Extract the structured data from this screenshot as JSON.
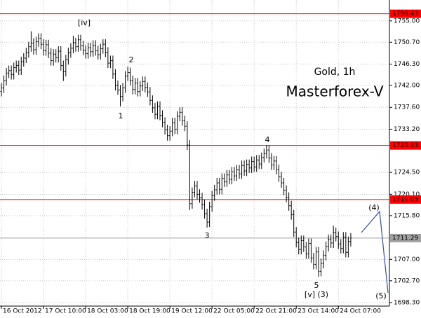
{
  "chart_data": {
    "type": "ohlc",
    "title": "Gold, 1h",
    "subtitle": "Masterforex-V",
    "subtitle_color": "#ff0000",
    "color": "#000000",
    "grid": true,
    "ylim": [
      1697.6,
      1759.2
    ],
    "yticks": [
      {
        "value": 1755.0,
        "label": "1755.00"
      },
      {
        "value": 1750.7,
        "label": "1750.70"
      },
      {
        "value": 1746.3,
        "label": "1746.30"
      },
      {
        "value": 1742.0,
        "label": "1742.00"
      },
      {
        "value": 1737.6,
        "label": "1737.60"
      },
      {
        "value": 1733.2,
        "label": "1733.20"
      },
      {
        "value": 1724.5,
        "label": "1724.50"
      },
      {
        "value": 1720.1,
        "label": "1720.10"
      },
      {
        "value": 1715.8,
        "label": "1715.80"
      },
      {
        "value": 1707.0,
        "label": "1707.00"
      },
      {
        "value": 1702.7,
        "label": "1702.70"
      },
      {
        "value": 1698.3,
        "label": "1698.30"
      }
    ],
    "xlim": [
      -0.57,
      156.6
    ],
    "xticks": [
      {
        "value": 0,
        "label": "16 Oct 2012"
      },
      {
        "value": 17,
        "label": "17 Oct 10:00"
      },
      {
        "value": 34,
        "label": "18 Oct 03:00"
      },
      {
        "value": 51,
        "label": "18 Oct 19:00"
      },
      {
        "value": 68,
        "label": "19 Oct 12:00"
      },
      {
        "value": 85,
        "label": "22 Oct 05:00"
      },
      {
        "value": 102,
        "label": "22 Oct 21:00"
      },
      {
        "value": 119,
        "label": "23 Oct 14:00"
      },
      {
        "value": 136,
        "label": "24 Oct 07:00"
      }
    ],
    "levels": [
      {
        "value": 1756.43,
        "color": "#ff0000"
      },
      {
        "value": 1729.93,
        "color": "#ff0000"
      },
      {
        "value": 1719.05,
        "color": "#ff0000"
      },
      {
        "value": 1711.29,
        "color": "#a0a0a0"
      }
    ],
    "annotations": [
      "[iv]",
      "1",
      "2",
      "3",
      "4",
      "5",
      "[v] (3)",
      "(4)",
      "(5)"
    ],
    "open": [
      1740.8,
      1741.5,
      1743.0,
      1744.5,
      1745.0,
      1744.2,
      1745.6,
      1746.0,
      1745.1,
      1746.8,
      1747.5,
      1748.6,
      1749.8,
      1750.5,
      1749.2,
      1750.8,
      1751.5,
      1750.3,
      1749.0,
      1750.2,
      1748.5,
      1747.0,
      1748.3,
      1747.6,
      1748.9,
      1746.0,
      1744.8,
      1747.2,
      1748.6,
      1749.5,
      1750.6,
      1749.8,
      1751.2,
      1750.0,
      1749.1,
      1748.4,
      1749.6,
      1748.8,
      1750.1,
      1749.0,
      1748.2,
      1749.4,
      1750.3,
      1748.7,
      1746.5,
      1747.0,
      1744.3,
      1742.0,
      1741.1,
      1739.8,
      1741.5,
      1743.9,
      1744.6,
      1743.0,
      1741.2,
      1742.5,
      1740.8,
      1741.9,
      1742.8,
      1741.6,
      1740.7,
      1739.0,
      1737.5,
      1736.2,
      1737.8,
      1736.0,
      1734.6,
      1733.1,
      1731.9,
      1732.8,
      1734.5,
      1733.2,
      1735.8,
      1736.6,
      1734.9,
      1733.8,
      1730.0,
      1718.2,
      1720.5,
      1721.8,
      1720.1,
      1719.4,
      1718.0,
      1716.2,
      1714.5,
      1717.6,
      1719.8,
      1721.0,
      1722.4,
      1721.1,
      1723.3,
      1722.6,
      1724.0,
      1723.1,
      1724.6,
      1723.8,
      1725.0,
      1724.2,
      1725.9,
      1724.8,
      1726.1,
      1725.4,
      1726.7,
      1725.6,
      1727.0,
      1726.2,
      1727.5,
      1728.3,
      1729.0,
      1727.4,
      1726.0,
      1726.8,
      1725.1,
      1723.6,
      1722.4,
      1720.9,
      1719.5,
      1717.8,
      1716.0,
      1712.5,
      1710.4,
      1709.0,
      1710.8,
      1709.5,
      1708.1,
      1710.2,
      1707.3,
      1706.0,
      1708.5,
      1704.6,
      1706.2,
      1707.8,
      1709.6,
      1711.0,
      1710.3,
      1712.4,
      1711.6,
      1710.1,
      1709.2,
      1711.5,
      1708.4,
      1710.6
    ],
    "high": [
      1742.5,
      1744.0,
      1745.5,
      1746.0,
      1746.0,
      1746.6,
      1747.0,
      1747.0,
      1747.8,
      1748.5,
      1749.6,
      1750.8,
      1752.9,
      1751.5,
      1751.8,
      1752.5,
      1752.5,
      1751.3,
      1751.2,
      1751.2,
      1749.5,
      1749.3,
      1749.3,
      1749.9,
      1749.9,
      1747.0,
      1748.2,
      1749.6,
      1750.5,
      1752.0,
      1751.6,
      1752.2,
      1752.2,
      1751.0,
      1750.1,
      1750.6,
      1750.6,
      1751.1,
      1751.1,
      1750.0,
      1750.4,
      1751.3,
      1751.3,
      1749.7,
      1748.0,
      1748.0,
      1745.3,
      1743.0,
      1742.1,
      1742.5,
      1744.9,
      1745.8,
      1745.6,
      1744.0,
      1743.5,
      1743.5,
      1742.9,
      1743.8,
      1743.8,
      1742.6,
      1741.7,
      1740.0,
      1738.5,
      1738.8,
      1738.8,
      1737.0,
      1735.6,
      1734.1,
      1733.8,
      1735.5,
      1735.5,
      1736.8,
      1737.6,
      1737.6,
      1735.9,
      1734.8,
      1731.0,
      1721.5,
      1722.8,
      1722.8,
      1721.1,
      1720.4,
      1719.0,
      1717.2,
      1718.6,
      1720.8,
      1722.0,
      1723.4,
      1723.4,
      1724.3,
      1724.3,
      1725.0,
      1725.0,
      1725.6,
      1725.6,
      1726.0,
      1726.0,
      1726.9,
      1726.9,
      1727.1,
      1727.1,
      1727.7,
      1727.7,
      1728.0,
      1728.0,
      1728.5,
      1729.3,
      1730.0,
      1730.0,
      1728.4,
      1727.8,
      1727.8,
      1726.1,
      1724.6,
      1723.4,
      1721.9,
      1720.5,
      1718.8,
      1717.0,
      1713.5,
      1711.4,
      1711.8,
      1711.8,
      1710.5,
      1711.2,
      1711.2,
      1708.3,
      1709.5,
      1709.5,
      1707.2,
      1708.8,
      1710.6,
      1712.0,
      1712.0,
      1713.8,
      1713.4,
      1712.6,
      1711.1,
      1712.5,
      1712.5,
      1711.6,
      1712.3
    ],
    "low": [
      1739.8,
      1740.5,
      1742.0,
      1743.5,
      1743.2,
      1743.2,
      1744.6,
      1744.1,
      1744.1,
      1745.8,
      1746.5,
      1747.6,
      1748.8,
      1748.2,
      1748.2,
      1749.8,
      1749.3,
      1748.0,
      1748.0,
      1747.5,
      1746.0,
      1746.0,
      1746.6,
      1746.6,
      1745.0,
      1742.9,
      1743.8,
      1746.2,
      1747.6,
      1748.5,
      1748.8,
      1748.8,
      1749.0,
      1748.1,
      1747.4,
      1747.4,
      1747.8,
      1747.8,
      1748.0,
      1747.2,
      1747.2,
      1748.4,
      1747.7,
      1745.5,
      1745.5,
      1743.3,
      1741.0,
      1740.1,
      1737.8,
      1738.8,
      1740.5,
      1742.9,
      1742.0,
      1740.2,
      1740.2,
      1739.8,
      1739.8,
      1740.9,
      1740.6,
      1739.7,
      1738.0,
      1736.5,
      1735.2,
      1735.2,
      1735.0,
      1733.6,
      1732.1,
      1730.9,
      1730.9,
      1731.8,
      1732.2,
      1732.2,
      1734.8,
      1733.9,
      1732.8,
      1729.0,
      1716.9,
      1717.2,
      1719.5,
      1719.1,
      1718.4,
      1717.0,
      1715.2,
      1713.4,
      1713.5,
      1716.6,
      1718.8,
      1720.0,
      1720.1,
      1720.1,
      1721.6,
      1721.6,
      1722.1,
      1722.1,
      1722.8,
      1722.8,
      1723.2,
      1723.2,
      1723.8,
      1723.8,
      1724.4,
      1724.4,
      1724.6,
      1724.6,
      1725.2,
      1725.2,
      1726.5,
      1727.3,
      1726.4,
      1725.0,
      1725.0,
      1724.1,
      1722.6,
      1721.4,
      1719.9,
      1718.5,
      1716.8,
      1715.0,
      1711.5,
      1709.4,
      1708.0,
      1708.0,
      1708.5,
      1707.1,
      1707.1,
      1706.3,
      1705.0,
      1705.0,
      1703.5,
      1703.6,
      1705.2,
      1706.8,
      1708.6,
      1709.3,
      1709.3,
      1710.6,
      1709.1,
      1708.2,
      1708.2,
      1707.4,
      1707.4,
      1709.6
    ],
    "close": [
      1741.5,
      1743.0,
      1744.5,
      1745.0,
      1744.2,
      1745.6,
      1746.0,
      1745.1,
      1746.8,
      1747.5,
      1748.6,
      1749.8,
      1750.5,
      1749.2,
      1750.8,
      1751.5,
      1750.3,
      1749.0,
      1750.2,
      1748.5,
      1747.0,
      1748.3,
      1747.6,
      1748.9,
      1746.0,
      1744.8,
      1747.2,
      1748.6,
      1749.5,
      1750.6,
      1749.8,
      1751.2,
      1750.0,
      1749.1,
      1748.4,
      1749.6,
      1748.8,
      1750.1,
      1749.0,
      1748.2,
      1749.4,
      1750.3,
      1748.7,
      1746.5,
      1747.0,
      1744.3,
      1742.0,
      1741.1,
      1739.8,
      1741.5,
      1743.9,
      1744.6,
      1743.0,
      1741.2,
      1742.5,
      1740.8,
      1741.9,
      1742.8,
      1741.6,
      1740.7,
      1739.0,
      1737.5,
      1736.2,
      1737.8,
      1736.0,
      1734.6,
      1733.1,
      1731.9,
      1732.8,
      1734.5,
      1733.2,
      1735.8,
      1736.6,
      1734.9,
      1733.8,
      1730.0,
      1718.2,
      1720.5,
      1721.8,
      1720.1,
      1719.4,
      1718.0,
      1716.2,
      1714.5,
      1717.6,
      1719.8,
      1721.0,
      1722.4,
      1721.1,
      1723.3,
      1722.6,
      1724.0,
      1723.1,
      1724.6,
      1723.8,
      1725.0,
      1724.2,
      1725.9,
      1724.8,
      1726.1,
      1725.4,
      1726.7,
      1725.6,
      1727.0,
      1726.2,
      1727.5,
      1728.3,
      1729.0,
      1727.4,
      1726.0,
      1726.8,
      1725.1,
      1723.6,
      1722.4,
      1720.9,
      1719.5,
      1717.8,
      1716.0,
      1712.5,
      1710.4,
      1709.0,
      1710.8,
      1709.5,
      1708.1,
      1710.2,
      1707.3,
      1706.0,
      1708.5,
      1704.6,
      1706.2,
      1707.8,
      1709.6,
      1711.0,
      1710.3,
      1712.4,
      1711.6,
      1710.1,
      1709.2,
      1711.5,
      1708.4,
      1710.6,
      1711.29
    ]
  }
}
